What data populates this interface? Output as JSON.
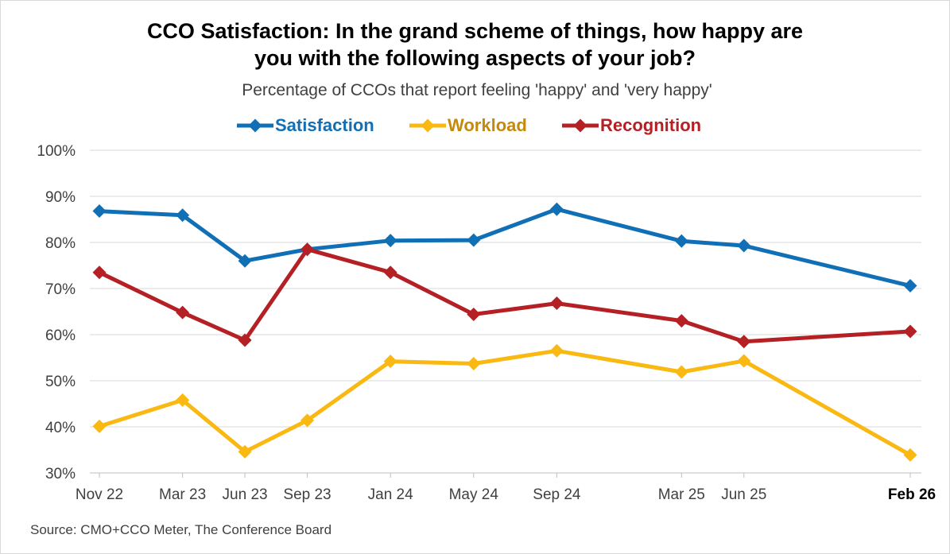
{
  "chart_data": {
    "type": "line",
    "title_line1": "CCO Satisfaction: In the grand scheme of things, how happy are",
    "title_line2": "you with the following aspects of your job?",
    "subtitle": "Percentage of CCOs that report feeling 'happy' and 'very happy'",
    "categories": [
      "Nov 22",
      "Mar 23",
      "Jun 23",
      "Sep 23",
      "Jan 24",
      "May 24",
      "Sep 24",
      "Mar 25",
      "Jun 25",
      "Feb 26"
    ],
    "category_months": [
      0,
      4,
      7,
      10,
      14,
      18,
      22,
      28,
      31,
      39
    ],
    "ylim": [
      30,
      100
    ],
    "yticks": [
      30,
      40,
      50,
      60,
      70,
      80,
      90,
      100
    ],
    "ytick_labels": [
      "30%",
      "40%",
      "50%",
      "60%",
      "70%",
      "80%",
      "90%",
      "100%"
    ],
    "grid": true,
    "legend_position": "top",
    "series": [
      {
        "name": "Satisfaction",
        "color": "#1170b5",
        "values": [
          86.8,
          85.9,
          76.0,
          78.5,
          80.4,
          80.5,
          87.2,
          80.3,
          79.3,
          70.6
        ]
      },
      {
        "name": "Workload",
        "color": "#f9b912",
        "values": [
          40.1,
          45.8,
          34.6,
          41.4,
          54.2,
          53.7,
          56.5,
          51.9,
          54.3,
          33.9
        ]
      },
      {
        "name": "Recognition",
        "color": "#b52025",
        "values": [
          73.5,
          64.8,
          58.8,
          78.5,
          73.5,
          64.4,
          66.8,
          63.0,
          58.5,
          60.7
        ]
      }
    ],
    "legend_text_colors": [
      "#1170b5",
      "#c58a0a",
      "#b52025"
    ],
    "source": "Source: CMO+CCO Meter, The Conference Board"
  }
}
